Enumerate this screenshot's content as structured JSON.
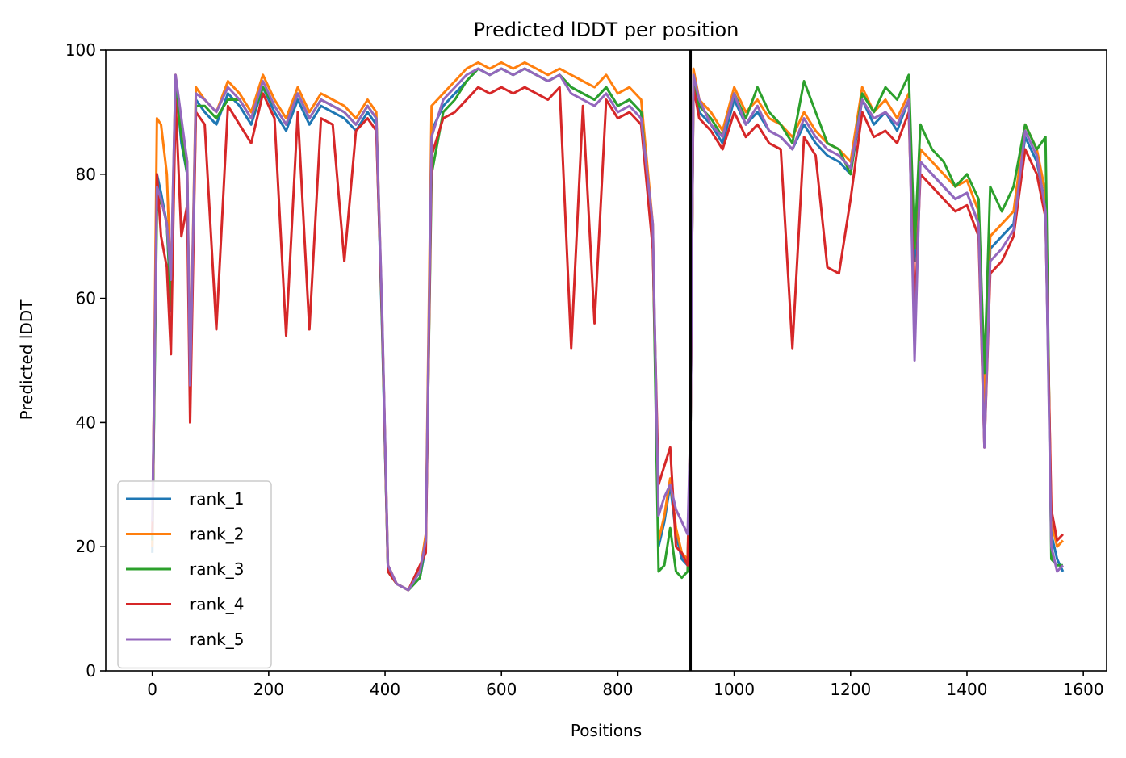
{
  "chart_data": {
    "type": "line",
    "title": "Predicted lDDT per position",
    "xlabel": "Positions",
    "ylabel": "Predicted lDDT",
    "xlim": [
      -80,
      1640
    ],
    "ylim": [
      0,
      100
    ],
    "xticks": [
      0,
      200,
      400,
      600,
      800,
      1000,
      1200,
      1400,
      1600
    ],
    "yticks": [
      0,
      20,
      40,
      60,
      80,
      100
    ],
    "chain_break": 925,
    "legend_position": "lower-left",
    "grid": false,
    "series": [
      {
        "name": "rank_1",
        "color": "#1f77b4",
        "x": [
          0,
          8,
          15,
          25,
          32,
          40,
          50,
          60,
          65,
          75,
          90,
          110,
          130,
          150,
          170,
          190,
          210,
          230,
          250,
          270,
          290,
          310,
          330,
          350,
          370,
          385,
          395,
          405,
          420,
          440,
          460,
          470,
          480,
          500,
          520,
          540,
          560,
          580,
          600,
          620,
          640,
          660,
          680,
          700,
          720,
          740,
          760,
          780,
          800,
          820,
          840,
          860,
          870,
          880,
          890,
          900,
          910,
          920,
          925,
          930,
          940,
          960,
          980,
          1000,
          1020,
          1040,
          1060,
          1080,
          1100,
          1120,
          1140,
          1160,
          1180,
          1200,
          1220,
          1240,
          1260,
          1280,
          1300,
          1310,
          1320,
          1340,
          1360,
          1380,
          1400,
          1420,
          1430,
          1440,
          1460,
          1480,
          1500,
          1520,
          1535,
          1545,
          1555,
          1565
        ],
        "y": [
          19,
          80,
          77,
          72,
          58,
          95,
          85,
          80,
          45,
          92,
          90,
          88,
          93,
          91,
          88,
          94,
          90,
          87,
          92,
          88,
          91,
          90,
          89,
          87,
          90,
          88,
          55,
          16,
          14,
          13,
          15,
          20,
          87,
          91,
          93,
          95,
          97,
          96,
          97,
          96,
          97,
          96,
          95,
          96,
          94,
          93,
          92,
          94,
          91,
          92,
          90,
          70,
          20,
          24,
          30,
          22,
          18,
          17,
          40,
          95,
          90,
          88,
          85,
          92,
          88,
          90,
          87,
          86,
          84,
          88,
          85,
          83,
          82,
          80,
          92,
          88,
          90,
          87,
          92,
          66,
          82,
          80,
          78,
          76,
          77,
          72,
          40,
          68,
          70,
          72,
          86,
          82,
          75,
          22,
          18,
          16
        ]
      },
      {
        "name": "rank_2",
        "color": "#ff7f0e",
        "x": [
          0,
          8,
          15,
          25,
          32,
          40,
          50,
          60,
          65,
          75,
          90,
          110,
          130,
          150,
          170,
          190,
          210,
          230,
          250,
          270,
          290,
          310,
          330,
          350,
          370,
          385,
          395,
          405,
          420,
          440,
          460,
          470,
          480,
          500,
          520,
          540,
          560,
          580,
          600,
          620,
          640,
          660,
          680,
          700,
          720,
          740,
          760,
          780,
          800,
          820,
          840,
          860,
          870,
          880,
          890,
          900,
          910,
          920,
          925,
          930,
          940,
          960,
          980,
          1000,
          1020,
          1040,
          1060,
          1080,
          1100,
          1120,
          1140,
          1160,
          1180,
          1200,
          1220,
          1240,
          1260,
          1280,
          1300,
          1310,
          1320,
          1340,
          1360,
          1380,
          1400,
          1420,
          1430,
          1440,
          1460,
          1480,
          1500,
          1520,
          1535,
          1545,
          1555,
          1565
        ],
        "y": [
          20,
          89,
          88,
          80,
          62,
          96,
          88,
          82,
          47,
          94,
          92,
          90,
          95,
          93,
          90,
          96,
          92,
          89,
          94,
          90,
          93,
          92,
          91,
          89,
          92,
          90,
          57,
          17,
          14,
          13,
          16,
          22,
          91,
          93,
          95,
          97,
          98,
          97,
          98,
          97,
          98,
          97,
          96,
          97,
          96,
          95,
          94,
          96,
          93,
          94,
          92,
          72,
          21,
          25,
          31,
          23,
          19,
          18,
          41,
          97,
          92,
          90,
          87,
          94,
          90,
          92,
          89,
          88,
          86,
          90,
          87,
          85,
          84,
          82,
          94,
          90,
          92,
          89,
          93,
          68,
          84,
          82,
          80,
          78,
          79,
          74,
          42,
          70,
          72,
          74,
          88,
          84,
          77,
          24,
          20,
          21
        ]
      },
      {
        "name": "rank_3",
        "color": "#2ca02c",
        "x": [
          0,
          8,
          15,
          25,
          32,
          40,
          50,
          60,
          65,
          75,
          90,
          110,
          130,
          150,
          170,
          190,
          210,
          230,
          250,
          270,
          290,
          310,
          330,
          350,
          370,
          385,
          395,
          405,
          420,
          440,
          460,
          470,
          480,
          500,
          520,
          540,
          560,
          580,
          600,
          620,
          640,
          660,
          680,
          700,
          720,
          740,
          760,
          780,
          800,
          820,
          840,
          860,
          870,
          880,
          890,
          900,
          910,
          920,
          925,
          930,
          940,
          960,
          980,
          1000,
          1020,
          1040,
          1060,
          1080,
          1100,
          1120,
          1140,
          1160,
          1180,
          1200,
          1220,
          1240,
          1260,
          1280,
          1300,
          1310,
          1320,
          1340,
          1360,
          1380,
          1400,
          1420,
          1430,
          1440,
          1460,
          1480,
          1500,
          1520,
          1535,
          1545,
          1555,
          1565
        ],
        "y": [
          21,
          74,
          76,
          72,
          59,
          94,
          86,
          80,
          44,
          91,
          91,
          89,
          92,
          92,
          89,
          94,
          91,
          88,
          93,
          89,
          92,
          91,
          90,
          88,
          91,
          89,
          56,
          16,
          14,
          13,
          15,
          21,
          80,
          90,
          92,
          95,
          97,
          96,
          97,
          96,
          97,
          96,
          95,
          96,
          94,
          93,
          92,
          94,
          91,
          92,
          90,
          70,
          16,
          17,
          23,
          16,
          15,
          16,
          40,
          95,
          91,
          89,
          86,
          93,
          89,
          94,
          90,
          88,
          85,
          95,
          90,
          85,
          84,
          80,
          93,
          90,
          94,
          92,
          96,
          68,
          88,
          84,
          82,
          78,
          80,
          76,
          48,
          78,
          74,
          78,
          88,
          84,
          86,
          18,
          17,
          17
        ]
      },
      {
        "name": "rank_4",
        "color": "#d62728",
        "x": [
          0,
          8,
          15,
          25,
          32,
          40,
          50,
          60,
          65,
          75,
          90,
          110,
          130,
          150,
          170,
          190,
          210,
          230,
          250,
          270,
          290,
          310,
          330,
          350,
          370,
          385,
          395,
          405,
          420,
          440,
          460,
          470,
          480,
          500,
          520,
          540,
          560,
          580,
          600,
          620,
          640,
          660,
          680,
          700,
          720,
          740,
          760,
          780,
          800,
          820,
          840,
          860,
          870,
          880,
          890,
          900,
          910,
          920,
          925,
          930,
          940,
          960,
          980,
          1000,
          1020,
          1040,
          1060,
          1080,
          1100,
          1120,
          1140,
          1160,
          1180,
          1200,
          1220,
          1240,
          1260,
          1280,
          1300,
          1310,
          1320,
          1340,
          1360,
          1380,
          1400,
          1420,
          1430,
          1440,
          1460,
          1480,
          1500,
          1520,
          1535,
          1545,
          1555,
          1565
        ],
        "y": [
          22,
          80,
          70,
          65,
          51,
          92,
          70,
          75,
          40,
          90,
          88,
          55,
          91,
          88,
          85,
          93,
          89,
          54,
          90,
          55,
          89,
          88,
          66,
          87,
          89,
          87,
          57,
          16,
          14,
          13,
          17,
          19,
          83,
          89,
          90,
          92,
          94,
          93,
          94,
          93,
          94,
          93,
          92,
          94,
          52,
          91,
          56,
          92,
          89,
          90,
          88,
          68,
          30,
          33,
          36,
          20,
          19,
          17,
          40,
          94,
          89,
          87,
          84,
          90,
          86,
          88,
          85,
          84,
          52,
          86,
          83,
          65,
          64,
          76,
          90,
          86,
          87,
          85,
          90,
          56,
          80,
          78,
          76,
          74,
          75,
          70,
          36,
          64,
          66,
          70,
          84,
          80,
          73,
          26,
          21,
          22
        ]
      },
      {
        "name": "rank_5",
        "color": "#9467bd",
        "x": [
          0,
          8,
          15,
          25,
          32,
          40,
          50,
          60,
          65,
          75,
          90,
          110,
          130,
          150,
          170,
          190,
          210,
          230,
          250,
          270,
          290,
          310,
          330,
          350,
          370,
          385,
          395,
          405,
          420,
          440,
          460,
          470,
          480,
          500,
          520,
          540,
          560,
          580,
          600,
          620,
          640,
          660,
          680,
          700,
          720,
          740,
          760,
          780,
          800,
          820,
          840,
          860,
          870,
          880,
          890,
          900,
          910,
          920,
          925,
          930,
          940,
          960,
          980,
          1000,
          1020,
          1040,
          1060,
          1080,
          1100,
          1120,
          1140,
          1160,
          1180,
          1200,
          1220,
          1240,
          1260,
          1280,
          1300,
          1310,
          1320,
          1340,
          1360,
          1380,
          1400,
          1420,
          1430,
          1440,
          1460,
          1480,
          1500,
          1520,
          1535,
          1545,
          1555,
          1565
        ],
        "y": [
          24,
          78,
          76,
          72,
          63,
          96,
          89,
          82,
          46,
          93,
          92,
          90,
          94,
          92,
          89,
          95,
          91,
          88,
          93,
          89,
          92,
          91,
          90,
          88,
          91,
          89,
          58,
          17,
          14,
          13,
          16,
          21,
          86,
          92,
          94,
          96,
          97,
          96,
          97,
          96,
          97,
          96,
          95,
          96,
          93,
          92,
          91,
          93,
          90,
          91,
          89,
          72,
          25,
          28,
          30,
          26,
          24,
          22,
          40,
          96,
          92,
          88,
          86,
          93,
          88,
          91,
          87,
          86,
          84,
          89,
          86,
          84,
          83,
          81,
          92,
          89,
          90,
          88,
          92,
          50,
          82,
          80,
          78,
          76,
          77,
          72,
          36,
          66,
          68,
          71,
          87,
          83,
          74,
          20,
          16,
          17
        ]
      }
    ]
  }
}
